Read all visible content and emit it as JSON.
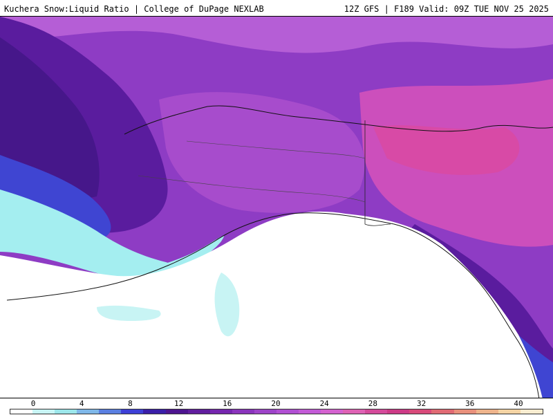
{
  "header": {
    "title_left": "Kuchera Snow:Liquid Ratio | College of DuPage NEXLAB",
    "title_right": "12Z GFS | F189 Valid: 09Z TUE NOV 25 2025"
  },
  "legend": {
    "ticks": [
      "0",
      "4",
      "8",
      "12",
      "16",
      "20",
      "24",
      "28",
      "32",
      "36",
      "40"
    ],
    "colors": [
      "#ffffff",
      "#c8f4f4",
      "#9ce6ea",
      "#7fb7e8",
      "#5a7fe0",
      "#3d3fd6",
      "#3a1ea8",
      "#4d148f",
      "#611d9e",
      "#7526ae",
      "#8a34bc",
      "#9d43c8",
      "#b04fd2",
      "#c25ad6",
      "#d462cf",
      "#de62b4",
      "#d44a9a",
      "#cc3a86",
      "#d84a7a",
      "#e06a74",
      "#e8907c",
      "#eeb48c",
      "#f4d4a4",
      "#f8ecd0"
    ]
  },
  "colors": {
    "ocean": "#ffffff",
    "purple_dark": "#4a1a8e",
    "purple_mid": "#8e3cc4",
    "purple_light": "#b25ad4",
    "magenta": "#d055c8",
    "pink": "#d84aa6",
    "blue": "#3f45d2",
    "cyan": "#a4eef0"
  }
}
